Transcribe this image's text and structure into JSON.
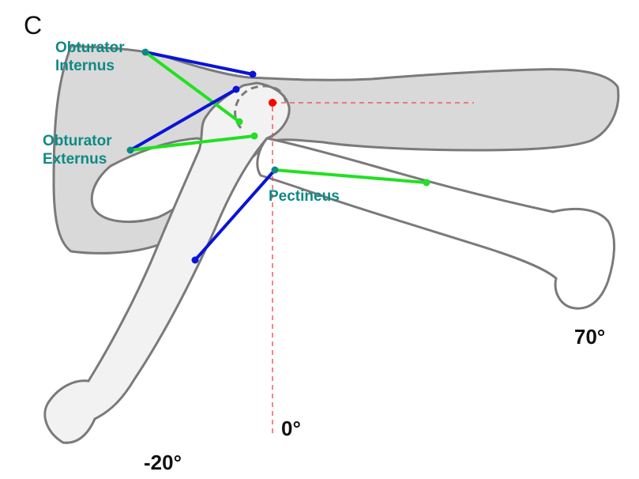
{
  "figure": {
    "panel_letter": "C",
    "muscles": {
      "obturator_internus": {
        "line1": "Obturator",
        "line2": "Internus"
      },
      "obturator_externus": {
        "line1": "Obturator",
        "line2": "Externus"
      },
      "pectineus": {
        "label": "Pectineus"
      }
    },
    "angles": {
      "zero": "0°",
      "abduction": "70°",
      "adduction": "-20°"
    },
    "colors": {
      "pelvis_fill": "#d9d9d9",
      "femur_fill": "#f2f2f2",
      "outline": "#7a7a7a",
      "muscle_line_blue": "#0a14d6",
      "muscle_line_green": "#22e022",
      "label_teal": "#0e8a84",
      "reference_line_red": "#ee4444",
      "hip_center": "#ff0000"
    }
  }
}
